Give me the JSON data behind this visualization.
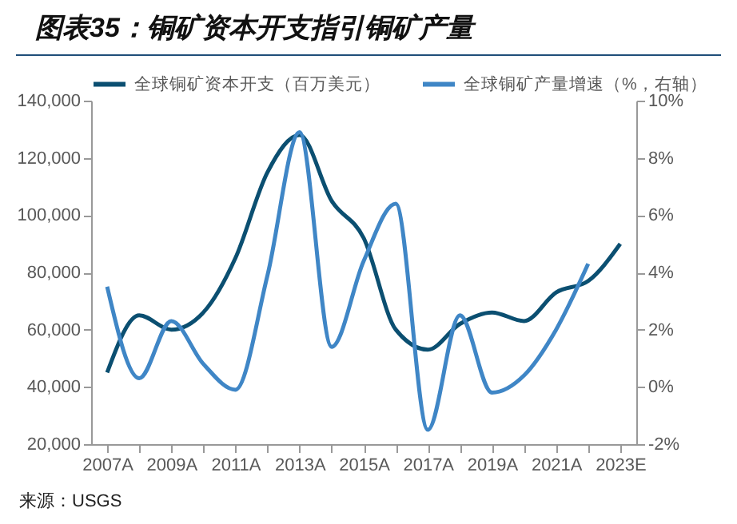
{
  "chart_data": {
    "type": "line",
    "title": "图表35：铜矿资本开支指引铜矿产量",
    "categories": [
      "2007A",
      null,
      "2009A",
      null,
      "2011A",
      null,
      "2013A",
      null,
      "2015A",
      null,
      "2017A",
      null,
      "2019A",
      null,
      "2021A",
      null,
      "2023E"
    ],
    "series": [
      {
        "name": "全球铜矿资本开支（百万美元）",
        "color": "#0b4f71",
        "values": [
          45000,
          65000,
          60000,
          66000,
          85000,
          115000,
          128000,
          105000,
          92000,
          60000,
          53000,
          62000,
          66000,
          63000,
          73000,
          77000,
          90000
        ]
      },
      {
        "name": "全球铜矿产量增速（%，右轴）",
        "color": "#3f86c6",
        "axis": "y2",
        "values": [
          3.5,
          0.3,
          2.3,
          0.8,
          -0.1,
          3.9,
          8.9,
          1.4,
          4.4,
          6.4,
          -1.5,
          2.5,
          -0.2,
          0.4,
          2.0,
          4.3,
          null
        ]
      }
    ],
    "ylim": [
      20000,
      140000
    ],
    "yticks": [
      {
        "value": 20000,
        "label": "20,000"
      },
      {
        "value": 40000,
        "label": "40,000"
      },
      {
        "value": 60000,
        "label": "60,000"
      },
      {
        "value": 80000,
        "label": "80,000"
      },
      {
        "value": 100000,
        "label": "100,000"
      },
      {
        "value": 120000,
        "label": "120,000"
      },
      {
        "value": 140000,
        "label": "140,000"
      }
    ],
    "y2lim": [
      -2,
      10
    ],
    "y2ticks": [
      {
        "value": -2,
        "label": "-2%"
      },
      {
        "value": 0,
        "label": "0%"
      },
      {
        "value": 2,
        "label": "2%"
      },
      {
        "value": 4,
        "label": "4%"
      },
      {
        "value": 6,
        "label": "6%"
      },
      {
        "value": 8,
        "label": "8%"
      },
      {
        "value": 10,
        "label": "10%"
      }
    ],
    "legend": "top",
    "grid": false,
    "marker": "none",
    "line_style": "solid",
    "annotations": [
      "来源：USGS"
    ]
  }
}
